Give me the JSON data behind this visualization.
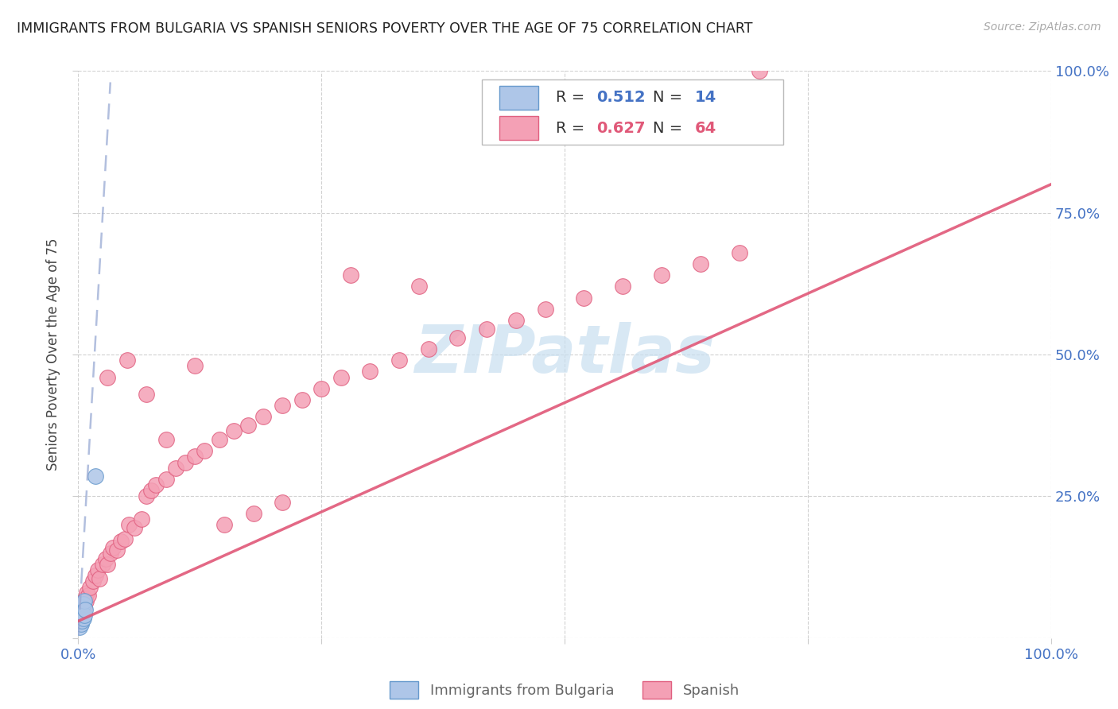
{
  "title": "IMMIGRANTS FROM BULGARIA VS SPANISH SENIORS POVERTY OVER THE AGE OF 75 CORRELATION CHART",
  "source": "Source: ZipAtlas.com",
  "ylabel": "Seniors Poverty Over the Age of 75",
  "background_color": "#ffffff",
  "grid_color": "#cccccc",
  "tick_color": "#4472c4",
  "title_color": "#222222",
  "bulgaria_color": "#aec6e8",
  "bulgaria_edge_color": "#6699cc",
  "spanish_color": "#f4a0b5",
  "spanish_edge_color": "#e06080",
  "bulgaria_R": "0.512",
  "bulgaria_N": "14",
  "spanish_R": "0.627",
  "spanish_N": "64",
  "legend_labels": [
    "Immigrants from Bulgaria",
    "Spanish"
  ],
  "watermark_text": "ZIPatlas",
  "watermark_color": "#c8dff0",
  "bul_trend_color": "#99aad4",
  "sp_trend_color": "#e05878",
  "bulgaria_points_x": [
    0.001,
    0.002,
    0.002,
    0.003,
    0.003,
    0.003,
    0.004,
    0.004,
    0.005,
    0.005,
    0.006,
    0.006,
    0.007,
    0.018
  ],
  "bulgaria_points_y": [
    0.02,
    0.03,
    0.045,
    0.025,
    0.04,
    0.055,
    0.03,
    0.05,
    0.035,
    0.06,
    0.04,
    0.065,
    0.05,
    0.285
  ],
  "spanish_points_x": [
    0.002,
    0.003,
    0.004,
    0.005,
    0.006,
    0.007,
    0.008,
    0.009,
    0.01,
    0.012,
    0.015,
    0.018,
    0.02,
    0.022,
    0.025,
    0.028,
    0.03,
    0.033,
    0.036,
    0.04,
    0.044,
    0.048,
    0.052,
    0.058,
    0.065,
    0.07,
    0.075,
    0.08,
    0.09,
    0.1,
    0.11,
    0.12,
    0.13,
    0.145,
    0.16,
    0.175,
    0.19,
    0.21,
    0.23,
    0.25,
    0.27,
    0.3,
    0.33,
    0.36,
    0.39,
    0.42,
    0.45,
    0.48,
    0.52,
    0.56,
    0.6,
    0.64,
    0.68,
    0.03,
    0.05,
    0.07,
    0.09,
    0.12,
    0.15,
    0.18,
    0.21,
    0.28,
    0.35,
    0.7
  ],
  "spanish_points_y": [
    0.03,
    0.045,
    0.05,
    0.06,
    0.055,
    0.07,
    0.065,
    0.08,
    0.075,
    0.09,
    0.1,
    0.11,
    0.12,
    0.105,
    0.13,
    0.14,
    0.13,
    0.15,
    0.16,
    0.155,
    0.17,
    0.175,
    0.2,
    0.195,
    0.21,
    0.25,
    0.26,
    0.27,
    0.28,
    0.3,
    0.31,
    0.32,
    0.33,
    0.35,
    0.365,
    0.375,
    0.39,
    0.41,
    0.42,
    0.44,
    0.46,
    0.47,
    0.49,
    0.51,
    0.53,
    0.545,
    0.56,
    0.58,
    0.6,
    0.62,
    0.64,
    0.66,
    0.68,
    0.46,
    0.49,
    0.43,
    0.35,
    0.48,
    0.2,
    0.22,
    0.24,
    0.64,
    0.62,
    1.0
  ],
  "bul_trend_x0": 0.0,
  "bul_trend_y0": 0.005,
  "bul_trend_x1": 0.033,
  "bul_trend_y1": 0.98,
  "sp_trend_x0": 0.0,
  "sp_trend_y0": 0.03,
  "sp_trend_x1": 1.0,
  "sp_trend_y1": 0.8,
  "xlim": [
    0,
    1.0
  ],
  "ylim": [
    0,
    1.0
  ]
}
